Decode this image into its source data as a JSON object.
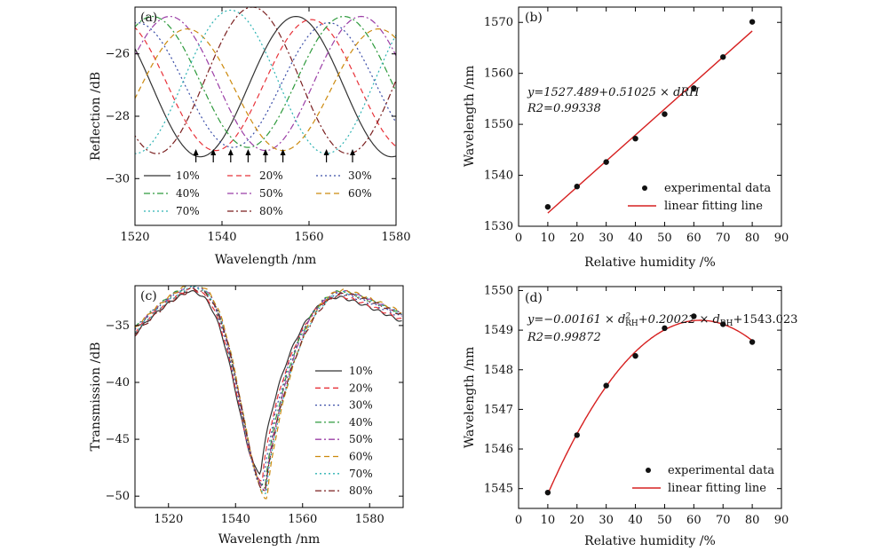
{
  "chart_data": [
    {
      "type": "line",
      "panel_label": "(a)",
      "xlabel": "Wavelength /nm",
      "ylabel": "Reflection /dB",
      "xlim": [
        1520,
        1580
      ],
      "ylim": [
        -31.5,
        -24.5
      ],
      "xticks": [
        "1520",
        "1540",
        "1560",
        "1580"
      ],
      "yticks": [
        "-26",
        "-28",
        "-30"
      ],
      "series": [
        {
          "name": "10%",
          "color": "#333333",
          "dash": "solid",
          "peaks": [
            1513,
            1557
          ],
          "period": 44,
          "dip": 1534,
          "min": -29.3,
          "max": -24.8
        },
        {
          "name": "20%",
          "color": "#e8333a",
          "dash": "dashed",
          "peaks": [
            1516.5,
            1560.5
          ],
          "period": 44,
          "dip": 1538,
          "min": -29.1,
          "max": -24.9
        },
        {
          "name": "30%",
          "color": "#3b4ea8",
          "dash": "dotted",
          "peaks": [
            1520.5,
            1564.5
          ],
          "period": 44,
          "dip": 1542,
          "min": -29.0,
          "max": -25.0
        },
        {
          "name": "40%",
          "color": "#2e9a3c",
          "dash": "dashdot",
          "peaks": [
            1524,
            1568
          ],
          "period": 44,
          "dip": 1546,
          "min": -29.0,
          "max": -24.8
        },
        {
          "name": "50%",
          "color": "#9b3ea6",
          "dash": "dashdot",
          "peaks": [
            1528,
            1572
          ],
          "period": 44,
          "dip": 1550,
          "min": -29.1,
          "max": -24.8
        },
        {
          "name": "60%",
          "color": "#cc8a0e",
          "dash": "dashed",
          "peaks": [
            1532,
            1576
          ],
          "period": 44,
          "dip": 1554,
          "min": -29.1,
          "max": -25.2
        },
        {
          "name": "70%",
          "color": "#2db3b3",
          "dash": "dotted",
          "peaks": [
            1542
          ],
          "period": 44,
          "dip": 1564,
          "min": -29.2,
          "max": -24.6
        },
        {
          "name": "80%",
          "color": "#7a1f1f",
          "dash": "dashdot",
          "peaks": [
            1503,
            1547
          ],
          "period": 44,
          "dip": 1570,
          "min": -29.2,
          "max": -24.5
        }
      ],
      "arrows_x": [
        1534,
        1538,
        1542,
        1546,
        1550,
        1554,
        1564,
        1570
      ]
    },
    {
      "type": "scatter",
      "panel_label": "(b)",
      "xlabel": "Relative humidity /%",
      "ylabel": "Wavelength /nm",
      "xlim": [
        0,
        90
      ],
      "ylim": [
        1530,
        1573
      ],
      "xticks": [
        "0",
        "10",
        "20",
        "30",
        "40",
        "50",
        "60",
        "70",
        "80",
        "90"
      ],
      "yticks": [
        "1530",
        "1540",
        "1550",
        "1560",
        "1570"
      ],
      "x": [
        10,
        20,
        30,
        40,
        50,
        60,
        70,
        80
      ],
      "y": [
        1533.8,
        1537.8,
        1542.6,
        1547.2,
        1552.0,
        1557.1,
        1563.2,
        1570.1
      ],
      "fit": {
        "type": "linear",
        "intercept": 1527.489,
        "slope": 0.51025
      },
      "equation": "y=1527.489+0.51025 × dRH",
      "r2": "R2=0.99338",
      "legend": [
        "experimental data",
        "linear fitting line"
      ]
    },
    {
      "type": "line",
      "panel_label": "(c)",
      "xlabel": "Wavelength /nm",
      "ylabel": "Transmission /dB",
      "xlim": [
        1510,
        1590
      ],
      "ylim": [
        -51,
        -31.5
      ],
      "xticks": [
        "1520",
        "1540",
        "1560",
        "1580"
      ],
      "yticks": [
        "-35",
        "-40",
        "-45",
        "-50"
      ],
      "series": [
        {
          "name": "10%",
          "color": "#333333",
          "dash": "solid",
          "dip_x": 1547.5,
          "dip_y": -48.0,
          "peak_y": -32.0,
          "right_y": -32.5
        },
        {
          "name": "20%",
          "color": "#e8333a",
          "dash": "dashed",
          "dip_x": 1548.0,
          "dip_y": -48.6,
          "peak_y": -31.8,
          "right_y": -32.4
        },
        {
          "name": "30%",
          "color": "#3b4ea8",
          "dash": "dotted",
          "dip_x": 1548.3,
          "dip_y": -49.1,
          "peak_y": -31.5,
          "right_y": -32.2
        },
        {
          "name": "40%",
          "color": "#2e9a3c",
          "dash": "dashdot",
          "dip_x": 1548.8,
          "dip_y": -49.3,
          "peak_y": -31.4,
          "right_y": -32.0
        },
        {
          "name": "50%",
          "color": "#9b3ea6",
          "dash": "dashdot",
          "dip_x": 1549.0,
          "dip_y": -49.5,
          "peak_y": -31.4,
          "right_y": -32.0
        },
        {
          "name": "60%",
          "color": "#cc8a0e",
          "dash": "dashed",
          "dip_x": 1549.5,
          "dip_y": -50.2,
          "peak_y": -31.3,
          "right_y": -31.9
        },
        {
          "name": "70%",
          "color": "#2db3b3",
          "dash": "dotted",
          "dip_x": 1549.2,
          "dip_y": -49.8,
          "peak_y": -31.6,
          "right_y": -32.1
        },
        {
          "name": "80%",
          "color": "#7a1f1f",
          "dash": "dashdot",
          "dip_x": 1549.0,
          "dip_y": -49.6,
          "peak_y": -31.8,
          "right_y": -32.2
        }
      ]
    },
    {
      "type": "scatter",
      "panel_label": "(d)",
      "xlabel": "Relative humidity /%",
      "ylabel": "Wavelength /nm",
      "xlim": [
        0,
        90
      ],
      "ylim": [
        1544.5,
        1550.1
      ],
      "xticks": [
        "0",
        "10",
        "20",
        "30",
        "40",
        "50",
        "60",
        "70",
        "80",
        "90"
      ],
      "yticks": [
        "1545",
        "1546",
        "1547",
        "1548",
        "1549",
        "1550"
      ],
      "x": [
        10,
        20,
        30,
        40,
        50,
        60,
        70,
        80
      ],
      "y": [
        1544.9,
        1546.35,
        1547.6,
        1548.35,
        1549.05,
        1549.35,
        1549.15,
        1548.7
      ],
      "fit": {
        "type": "quadratic",
        "a": -0.00161,
        "b": 0.20022,
        "c": 1543.023
      },
      "equation_main": "y=−0.00161 × d",
      "equation_mid": "+0.20022 × d",
      "equation_end": "+1543.023",
      "sup": "2",
      "sub": "RH",
      "r2": "R2=0.99872",
      "legend": [
        "experimental data",
        "linear fitting line"
      ]
    }
  ]
}
